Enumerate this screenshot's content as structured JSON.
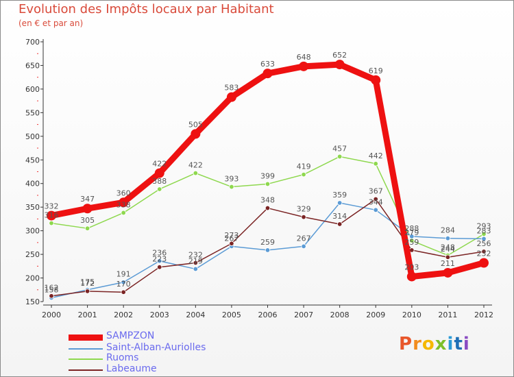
{
  "title": "Evolution des Impôts locaux par Habitant",
  "subtitle": "(en € et par an)",
  "logo": "Proxiti",
  "chart_data": {
    "type": "line",
    "x": [
      2000,
      2001,
      2002,
      2003,
      2004,
      2005,
      2006,
      2007,
      2008,
      2009,
      2010,
      2011,
      2012
    ],
    "ylim": [
      150,
      700
    ],
    "yticks": [
      150,
      200,
      250,
      300,
      350,
      400,
      450,
      500,
      550,
      600,
      650,
      700
    ],
    "grid": false,
    "legend_position": "bottom-left",
    "series": [
      {
        "name": "SAMPZON",
        "color": "#ee1111",
        "values": [
          332,
          347,
          360,
          422,
          505,
          583,
          633,
          648,
          652,
          619,
          203,
          211,
          232
        ]
      },
      {
        "name": "Saint-Alban-Auriolles",
        "color": "#5b9bd5",
        "values": [
          158,
          175,
          191,
          236,
          219,
          267,
          259,
          267,
          359,
          344,
          288,
          284,
          283
        ]
      },
      {
        "name": "Ruoms",
        "color": "#8ed84e",
        "values": [
          316,
          305,
          338,
          388,
          422,
          393,
          399,
          419,
          457,
          442,
          279,
          248,
          293
        ]
      },
      {
        "name": "Labeaume",
        "color": "#7b2424",
        "values": [
          162,
          172,
          170,
          223,
          232,
          273,
          348,
          329,
          314,
          367,
          259,
          244,
          256
        ]
      }
    ]
  }
}
